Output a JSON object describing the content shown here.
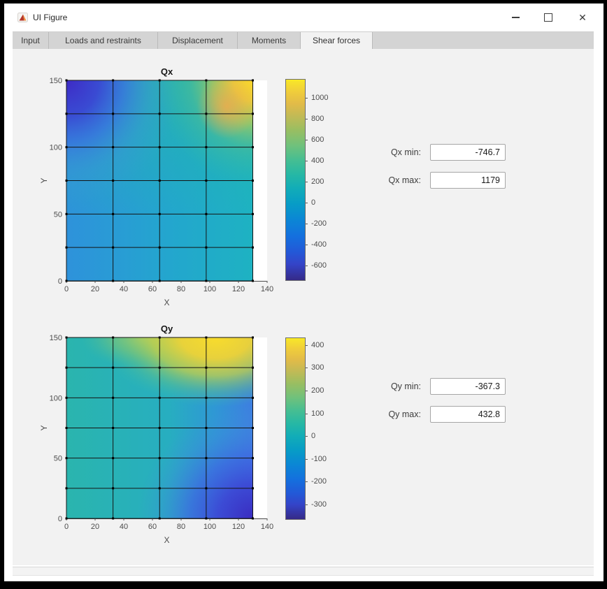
{
  "window": {
    "title": "UI Figure",
    "close_glyph": "✕"
  },
  "tabs": [
    {
      "label": "Input",
      "selected": false
    },
    {
      "label": "Loads and restraints",
      "selected": false
    },
    {
      "label": "Displacement",
      "selected": false
    },
    {
      "label": "Moments",
      "selected": false
    },
    {
      "label": "Shear forces",
      "selected": true
    }
  ],
  "fields": {
    "qx_min": {
      "label": "Qx min:",
      "value": "-746.7"
    },
    "qx_max": {
      "label": "Qx max:",
      "value": "1179"
    },
    "qy_min": {
      "label": "Qy min:",
      "value": "-367.3"
    },
    "qy_max": {
      "label": "Qy max:",
      "value": "432.8"
    }
  },
  "chart_data": [
    {
      "type": "heatmap",
      "title": "Qx",
      "xlabel": "X",
      "ylabel": "Y",
      "xlim": [
        0,
        140
      ],
      "ylim": [
        0,
        150
      ],
      "x_ticks": [
        0,
        20,
        40,
        60,
        80,
        100,
        120,
        140
      ],
      "y_ticks": [
        0,
        50,
        100,
        150
      ],
      "mesh": {
        "x_nodes": [
          0,
          32.5,
          65,
          97.5,
          130
        ],
        "y_nodes": [
          0,
          25,
          50,
          75,
          100,
          125,
          150
        ]
      },
      "colormap": "parula",
      "value_min": -746.7,
      "value_max": 1179,
      "min_location": "top-left corner (x=0, y=150)",
      "max_location": "top-right corner (x=130, y=150)",
      "colorbar": {
        "min": -746.7,
        "max": 1179,
        "ticks": [
          1000,
          800,
          600,
          400,
          200,
          0,
          -200,
          -400,
          -600
        ]
      },
      "description": "Shear force Qx over 130x150 plate mesh; mostly cyan/teal (~0-300), strongly negative (dark blue) at top-left, strongly positive (yellow/orange) at top-right"
    },
    {
      "type": "heatmap",
      "title": "Qy",
      "xlabel": "X",
      "ylabel": "Y",
      "xlim": [
        0,
        140
      ],
      "ylim": [
        0,
        150
      ],
      "x_ticks": [
        0,
        20,
        40,
        60,
        80,
        100,
        120,
        140
      ],
      "y_ticks": [
        0,
        50,
        100,
        150
      ],
      "mesh": {
        "x_nodes": [
          0,
          32.5,
          65,
          97.5,
          130
        ],
        "y_nodes": [
          0,
          25,
          50,
          75,
          100,
          125,
          150
        ]
      },
      "colormap": "parula",
      "value_min": -367.3,
      "value_max": 432.8,
      "min_location": "bottom-right corner (x=130, y=0)",
      "max_location": "top edge right (x≈80-130, y=150)",
      "colorbar": {
        "min": -367.3,
        "max": 432.8,
        "ticks": [
          400,
          300,
          200,
          100,
          0,
          -100,
          -200,
          -300
        ]
      },
      "description": "Shear force Qy over 130x150 plate mesh; teal on left, yellow band along top edge peaking at top-right, dark blue at bottom-right"
    }
  ]
}
